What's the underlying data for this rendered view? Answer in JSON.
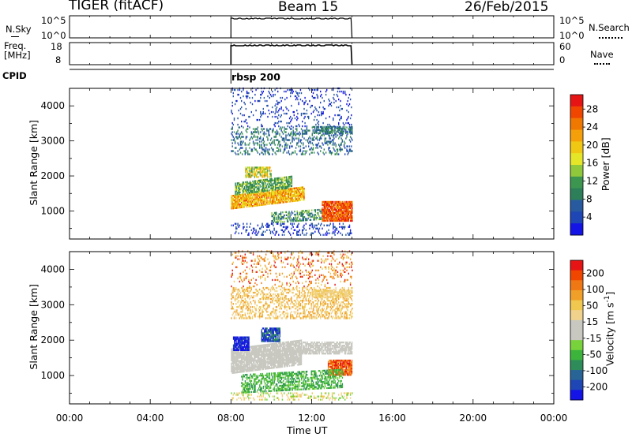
{
  "header": {
    "title": "TIGER (fitACF)",
    "beam": "Beam 15",
    "date": "26/Feb/2015"
  },
  "top_panels": {
    "nsky_label": "N.Sky",
    "nsky_left_ticks": [
      "10^5",
      "10^0"
    ],
    "nsky_right_ticks": [
      "10^5",
      "10^0"
    ],
    "nsearch_label": "N.Search",
    "freq_label_1": "Freq.",
    "freq_label_2": "[MHz]",
    "freq_left_ticks": [
      "18",
      "8"
    ],
    "nave_right_ticks": [
      "60",
      "0"
    ],
    "nave_label": "Nave",
    "cpid_label": "CPID",
    "cpid_value": "rbsp 200"
  },
  "chart_data": [
    {
      "type": "heatmap",
      "title": "",
      "ylabel": "Slant Range [km]",
      "xlabel": "",
      "ylim": [
        200,
        4500
      ],
      "y_ticks": [
        "1000",
        "2000",
        "3000",
        "4000"
      ],
      "x_range_hours": [
        0,
        24
      ],
      "data_time_range": [
        "08:00",
        "14:00"
      ],
      "colorbar": {
        "label": "Power [dB]",
        "ticks": [
          "4",
          "8",
          "12",
          "16",
          "20",
          "24",
          "28"
        ],
        "colors": [
          "#1414e6",
          "#1e46b4",
          "#285aa0",
          "#2d7f5a",
          "#3c9650",
          "#90c83c",
          "#e6e628",
          "#f0c814",
          "#f5a00a",
          "#f07800",
          "#f04600",
          "#e61414"
        ]
      },
      "features": [
        {
          "desc_range_km": [
            1100,
            1700
          ],
          "time": [
            "08:00",
            "11:30"
          ],
          "level": "yellow/green"
        },
        {
          "desc_range_km": [
            800,
            1200
          ],
          "time": [
            "12:30",
            "14:00"
          ],
          "level": "red/orange"
        },
        {
          "desc_range_km": [
            2000,
            2200
          ],
          "time": [
            "08:30",
            "10:00"
          ],
          "level": "green/yellow"
        }
      ]
    },
    {
      "type": "heatmap",
      "title": "",
      "ylabel": "Slant Range [km]",
      "xlabel": "Time UT",
      "ylim": [
        200,
        4500
      ],
      "y_ticks": [
        "1000",
        "2000",
        "3000",
        "4000"
      ],
      "x_ticks": [
        "00:00",
        "04:00",
        "08:00",
        "12:00",
        "16:00",
        "20:00",
        "00:00"
      ],
      "data_time_range": [
        "08:00",
        "14:00"
      ],
      "colorbar": {
        "label": "Velocity [m s^-1]",
        "ticks": [
          "200",
          "100",
          "50",
          "15",
          "-15",
          "-50",
          "-100",
          "-200"
        ],
        "colors": [
          "#1414e6",
          "#1e46b4",
          "#286496",
          "#2d8c5a",
          "#3cb43c",
          "#78d23c",
          "#c8c8c0",
          "#c8c8c0",
          "#f0d28c",
          "#f0c850",
          "#f0a028",
          "#f07814",
          "#f04600",
          "#e61414"
        ]
      }
    }
  ]
}
